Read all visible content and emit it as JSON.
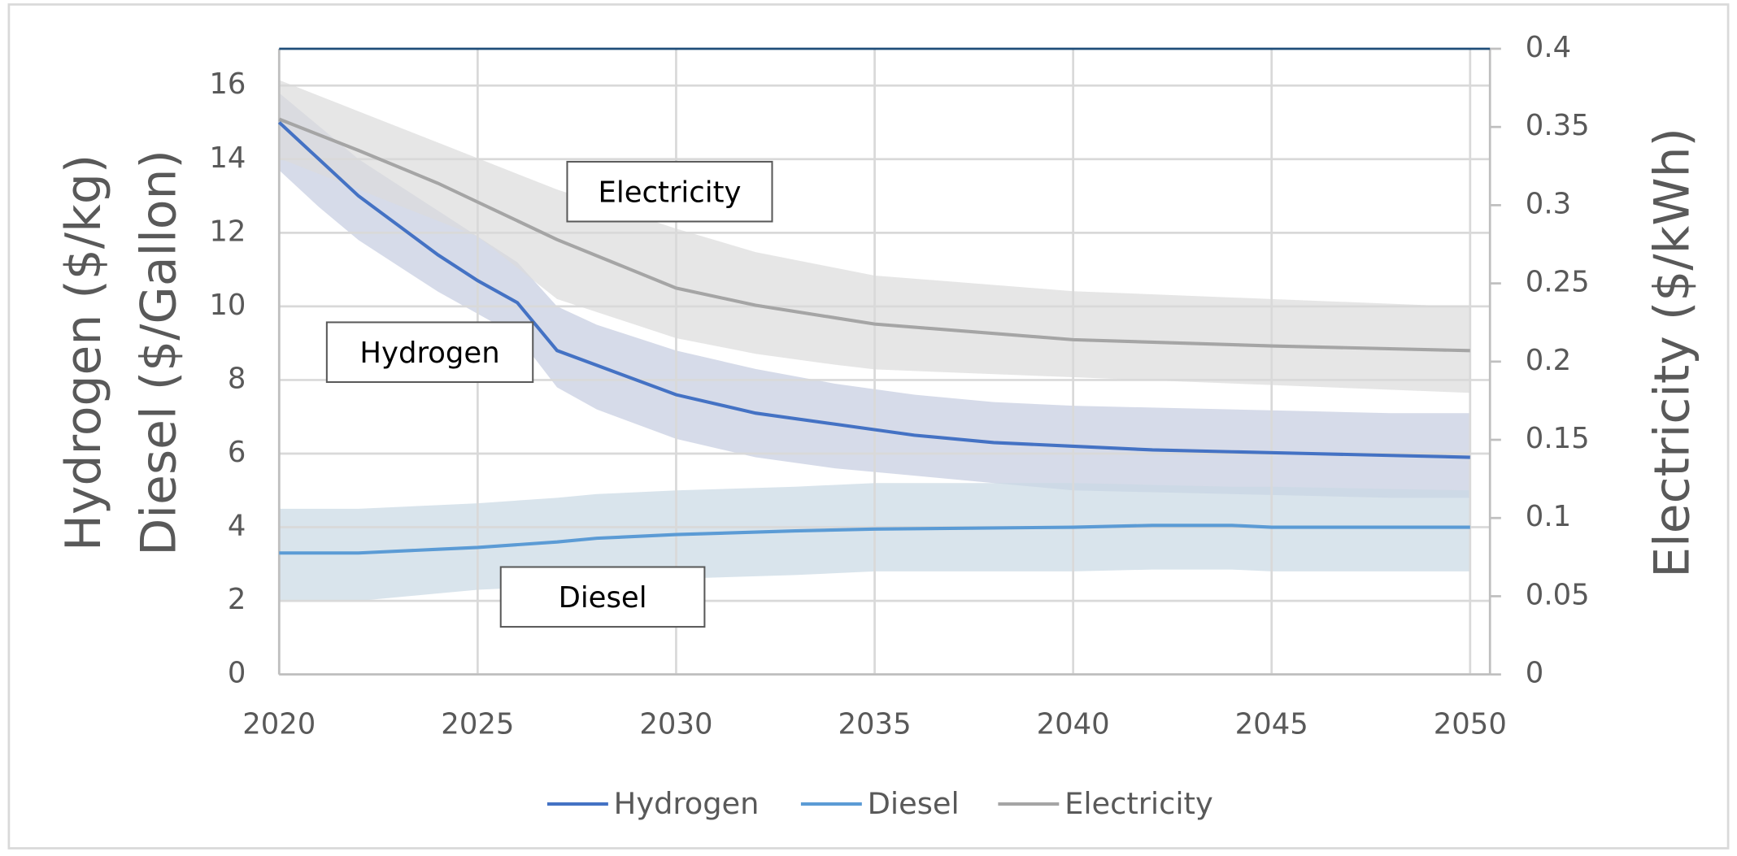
{
  "chart_data": {
    "type": "line",
    "ylabel": [
      "Hydrogen ($/kg)",
      "Diesel ($/Gallon)"
    ],
    "y2label": "Electricity ($/kWh)",
    "xlim": [
      2020,
      2050.5
    ],
    "xticks": [
      2020,
      2025,
      2030,
      2035,
      2040,
      2045,
      2050
    ],
    "ylim": [
      0,
      17
    ],
    "yticks": [
      0,
      2,
      4,
      6,
      8,
      10,
      12,
      14,
      16
    ],
    "y2lim": [
      0,
      0.4
    ],
    "y2ticks": [
      0,
      0.05,
      0.1,
      0.15,
      0.2,
      0.25,
      0.3,
      0.35,
      0.4
    ],
    "grid": true,
    "legend": "bottom",
    "annotations": [
      "Electricity",
      "Hydrogen",
      "Diesel"
    ],
    "series": [
      {
        "name": "Hydrogen",
        "color": "#4472c4",
        "band_color": "#c5ccdf",
        "x": [
          2020,
          2021,
          2022,
          2023,
          2024,
          2025,
          2026,
          2027,
          2028,
          2030,
          2032,
          2034,
          2036,
          2038,
          2040,
          2042,
          2044,
          2046,
          2048,
          2050
        ],
        "values": [
          15,
          14,
          13,
          12.2,
          11.4,
          10.7,
          10.1,
          8.8,
          8.4,
          7.6,
          7.1,
          6.8,
          6.5,
          6.3,
          6.2,
          6.1,
          6.05,
          6,
          5.95,
          5.9
        ],
        "upper": [
          15.8,
          14.9,
          14,
          13.3,
          12.6,
          11.9,
          11.2,
          10,
          9.5,
          8.8,
          8.3,
          7.9,
          7.6,
          7.4,
          7.3,
          7.25,
          7.2,
          7.15,
          7.1,
          7.1
        ],
        "lower": [
          13.7,
          12.7,
          11.8,
          11.1,
          10.4,
          9.8,
          9.2,
          7.8,
          7.2,
          6.4,
          5.9,
          5.6,
          5.4,
          5.2,
          5,
          4.95,
          4.9,
          4.85,
          4.8,
          4.8
        ]
      },
      {
        "name": "Diesel",
        "color": "#5b9bd5",
        "band_color": "#c9d8e4",
        "x": [
          2020,
          2022,
          2024,
          2025,
          2027,
          2028,
          2030,
          2033,
          2035,
          2040,
          2042,
          2044,
          2045,
          2050
        ],
        "values": [
          3.3,
          3.3,
          3.4,
          3.45,
          3.6,
          3.7,
          3.8,
          3.9,
          3.95,
          4,
          4.05,
          4.05,
          4,
          4
        ],
        "upper": [
          4.5,
          4.5,
          4.6,
          4.65,
          4.8,
          4.9,
          5,
          5.1,
          5.2,
          5.2,
          5.15,
          5.1,
          5.1,
          5
        ],
        "lower": [
          2,
          2,
          2.2,
          2.3,
          2.4,
          2.5,
          2.6,
          2.7,
          2.8,
          2.8,
          2.85,
          2.85,
          2.8,
          2.8
        ]
      },
      {
        "name": "Electricity",
        "color": "#a5a5a5",
        "band_color": "#dcdcdc",
        "axis": "y2",
        "x": [
          2020,
          2022,
          2024,
          2025,
          2027,
          2030,
          2032,
          2034,
          2035,
          2040,
          2045,
          2050
        ],
        "values": [
          0.355,
          0.335,
          0.314,
          0.302,
          0.278,
          0.247,
          0.236,
          0.228,
          0.224,
          0.214,
          0.21,
          0.207
        ],
        "upper": [
          0.38,
          0.36,
          0.34,
          0.33,
          0.31,
          0.285,
          0.27,
          0.26,
          0.255,
          0.245,
          0.24,
          0.235
        ],
        "lower": [
          0.33,
          0.31,
          0.29,
          0.28,
          0.24,
          0.215,
          0.205,
          0.198,
          0.195,
          0.19,
          0.185,
          0.18
        ]
      }
    ]
  }
}
